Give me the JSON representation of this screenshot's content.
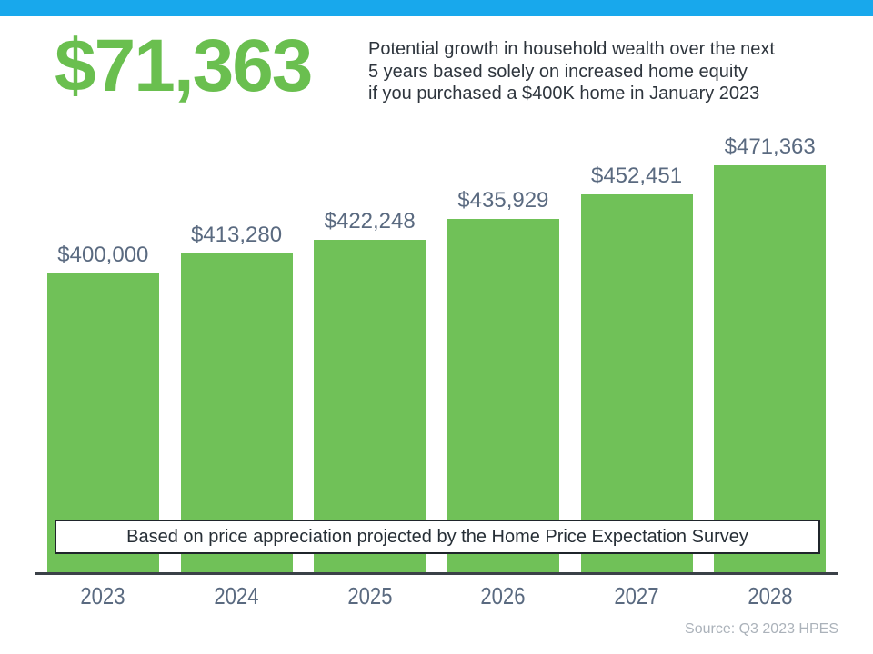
{
  "page": {
    "headline_value": "$71,363",
    "description_lines": [
      "Potential growth in household wealth over the next",
      "5 years based solely on increased home equity",
      "if you purchased a $400K home in January 2023"
    ],
    "banner_text": "Based on price appreciation projected by the Home Price Expectation Survey",
    "source_note": "Source: Q3 2023 HPES"
  },
  "colors": {
    "top_strip_blue": "#18A8EC",
    "accent_green": "#6ABF4F",
    "bar_green": "#70C158",
    "label_slate": "#5A6A80",
    "axis_dark": "#3B4148",
    "source_gray": "#ABB2BA"
  },
  "chart_data": {
    "type": "bar",
    "title": "Potential growth in household wealth over the next 5 years based solely on increased home equity if you purchased a $400K home in January 2023",
    "categories": [
      "2023",
      "2024",
      "2025",
      "2026",
      "2027",
      "2028"
    ],
    "values": [
      400000,
      413280,
      422248,
      435929,
      452451,
      471363
    ],
    "data_labels": [
      "$400,000",
      "$413,280",
      "$422,248",
      "$435,929",
      "$452,451",
      "$471,363"
    ],
    "annotation": "Based on price appreciation projected by the Home Price Expectation Survey",
    "xlabel": "",
    "ylabel": "",
    "legend": false,
    "grid": false,
    "axis_note": "value axis hidden; bars truncated (not zero-based); data labels shown above bars"
  }
}
